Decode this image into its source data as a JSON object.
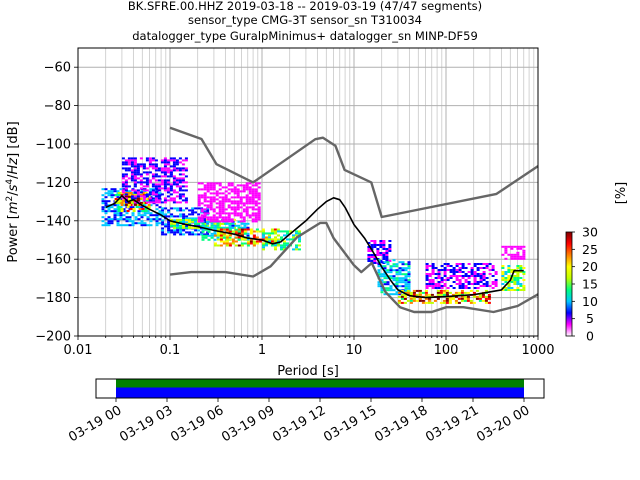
{
  "chart_data": [
    {
      "type": "heatmap",
      "title": [
        "BK.SFRE.00.HHZ   2019-03-18 -- 2019-03-19  (47/47 segments)",
        "sensor_type CMG-3T sensor_sn T310034",
        "datalogger_type GuralpMinimus+ datalogger_sn MINP-DF59"
      ],
      "xlabel": "Period [s]",
      "ylabel_parts": [
        "Power [",
        "m",
        "2",
        "/",
        "s",
        "4",
        "/",
        "Hz",
        "] [dB]"
      ],
      "x_scale": "log",
      "xlim": [
        0.01,
        1000
      ],
      "ylim": [
        -200,
        -50
      ],
      "x_ticks": [
        0.01,
        0.1,
        1,
        10,
        100,
        1000
      ],
      "x_tick_labels": [
        "0.01",
        "0.1",
        "1",
        "10",
        "100",
        "1000"
      ],
      "y_ticks": [
        -200,
        -180,
        -160,
        -140,
        -120,
        -100,
        -80,
        -60
      ],
      "y_tick_labels": [
        "−200",
        "−180",
        "−160",
        "−140",
        "−120",
        "−100",
        "−80",
        "−60"
      ],
      "grid": true,
      "colorbar": {
        "label": "[%]",
        "range": [
          0,
          30
        ],
        "ticks": [
          0,
          5,
          10,
          15,
          20,
          25,
          30
        ],
        "tick_labels": [
          "0",
          "5",
          "10",
          "15",
          "20",
          "25",
          "30"
        ],
        "colormap": [
          "#ffffff",
          "#ff00ff",
          "#0000ff",
          "#00c8ff",
          "#00ff80",
          "#c0ff00",
          "#ffff00",
          "#ff8000",
          "#ff0000",
          "#800000"
        ]
      },
      "series": [
        {
          "kind": "noise-model-high",
          "color": "#666666",
          "points": [
            [
              0.1,
              -91.5
            ],
            [
              0.22,
              -97.4
            ],
            [
              0.32,
              -110.5
            ],
            [
              0.8,
              -120
            ],
            [
              3.8,
              -97.5
            ],
            [
              4.6,
              -96.7
            ],
            [
              6.3,
              -101
            ],
            [
              7.9,
              -113.5
            ],
            [
              15.4,
              -120
            ],
            [
              20,
              -138
            ],
            [
              354,
              -126
            ],
            [
              1000,
              -111.5
            ]
          ]
        },
        {
          "kind": "noise-model-low",
          "color": "#666666",
          "points": [
            [
              0.1,
              -168
            ],
            [
              0.17,
              -166.7
            ],
            [
              0.4,
              -166.7
            ],
            [
              0.8,
              -169
            ],
            [
              1.24,
              -163.7
            ],
            [
              2.4,
              -148.6
            ],
            [
              4.3,
              -141.1
            ],
            [
              5.0,
              -141.1
            ],
            [
              6.0,
              -149
            ],
            [
              10,
              -163.2
            ],
            [
              12,
              -166.7
            ],
            [
              15.6,
              -162
            ],
            [
              21.9,
              -177
            ],
            [
              31.6,
              -185
            ],
            [
              45,
              -187.5
            ],
            [
              70,
              -187.5
            ],
            [
              101,
              -185
            ],
            [
              154,
              -185
            ],
            [
              328,
              -187.5
            ],
            [
              600,
              -184.4
            ],
            [
              1000,
              -178.3
            ]
          ]
        },
        {
          "kind": "mode",
          "color": "#000000",
          "points": [
            [
              0.02,
              -133
            ],
            [
              0.025,
              -131
            ],
            [
              0.03,
              -127
            ],
            [
              0.035,
              -130
            ],
            [
              0.04,
              -129
            ],
            [
              0.05,
              -132
            ],
            [
              0.06,
              -134
            ],
            [
              0.08,
              -137
            ],
            [
              0.1,
              -140
            ],
            [
              0.15,
              -142
            ],
            [
              0.2,
              -143
            ],
            [
              0.3,
              -145
            ],
            [
              0.5,
              -147
            ],
            [
              0.7,
              -149
            ],
            [
              1,
              -150
            ],
            [
              1.3,
              -152
            ],
            [
              1.6,
              -151
            ],
            [
              2,
              -147
            ],
            [
              3,
              -140
            ],
            [
              4,
              -134
            ],
            [
              5,
              -130
            ],
            [
              6,
              -128
            ],
            [
              7,
              -129
            ],
            [
              8,
              -133
            ],
            [
              10,
              -142
            ],
            [
              13,
              -149
            ],
            [
              16,
              -156
            ],
            [
              20,
              -164
            ],
            [
              25,
              -171
            ],
            [
              30,
              -176
            ],
            [
              40,
              -179
            ],
            [
              60,
              -180
            ],
            [
              100,
              -179.5
            ],
            [
              200,
              -178.5
            ],
            [
              400,
              -176
            ],
            [
              500,
              -171
            ],
            [
              550,
              -166
            ],
            [
              700,
              -166
            ]
          ]
        }
      ],
      "density_points": [
        {
          "x": [
            0.018,
            0.08
          ],
          "y": [
            -142,
            -123
          ],
          "pct": 6
        },
        {
          "x": [
            0.025,
            0.06
          ],
          "y": [
            -135,
            -125
          ],
          "pct": 18
        },
        {
          "x": [
            0.03,
            0.05
          ],
          "y": [
            -132,
            -126
          ],
          "pct": 28
        },
        {
          "x": [
            0.03,
            0.15
          ],
          "y": [
            -130,
            -107
          ],
          "pct": 2
        },
        {
          "x": [
            0.08,
            0.25
          ],
          "y": [
            -147,
            -133
          ],
          "pct": 5
        },
        {
          "x": [
            0.1,
            0.5
          ],
          "y": [
            -144,
            -139
          ],
          "pct": 14
        },
        {
          "x": [
            0.22,
            0.7
          ],
          "y": [
            -150,
            -140
          ],
          "pct": 9
        },
        {
          "x": [
            0.3,
            1.5
          ],
          "y": [
            -153,
            -144
          ],
          "pct": 20
        },
        {
          "x": [
            0.2,
            0.9
          ],
          "y": [
            -140,
            -120
          ],
          "pct": 1
        },
        {
          "x": [
            1,
            2.5
          ],
          "y": [
            -155,
            -145
          ],
          "pct": 12
        },
        {
          "x": [
            14,
            25
          ],
          "y": [
            -162,
            -150
          ],
          "pct": 2
        },
        {
          "x": [
            18,
            40
          ],
          "y": [
            -178,
            -160
          ],
          "pct": 8
        },
        {
          "x": [
            30,
            300
          ],
          "y": [
            -183,
            -176
          ],
          "pct": 22
        },
        {
          "x": [
            60,
            350
          ],
          "y": [
            -175,
            -162
          ],
          "pct": 2
        },
        {
          "x": [
            400,
            700
          ],
          "y": [
            -176,
            -163
          ],
          "pct": 14
        },
        {
          "x": [
            400,
            700
          ],
          "y": [
            -160,
            -153
          ],
          "pct": 1
        }
      ]
    },
    {
      "type": "bar",
      "subtype": "timeline",
      "xlim": [
        "03-19 00",
        "03-20 00"
      ],
      "x_ticks": [
        0,
        3,
        6,
        9,
        12,
        15,
        18,
        21,
        24
      ],
      "x_tick_labels": [
        "03-19 00",
        "03-19 03",
        "03-19 06",
        "03-19 09",
        "03-19 12",
        "03-19 15",
        "03-19 18",
        "03-19 21",
        "03-20 00"
      ],
      "bars": [
        {
          "color": "#008000",
          "start": 0,
          "end": 24
        },
        {
          "color": "#0000ff",
          "start": 0,
          "end": 24
        }
      ]
    }
  ]
}
